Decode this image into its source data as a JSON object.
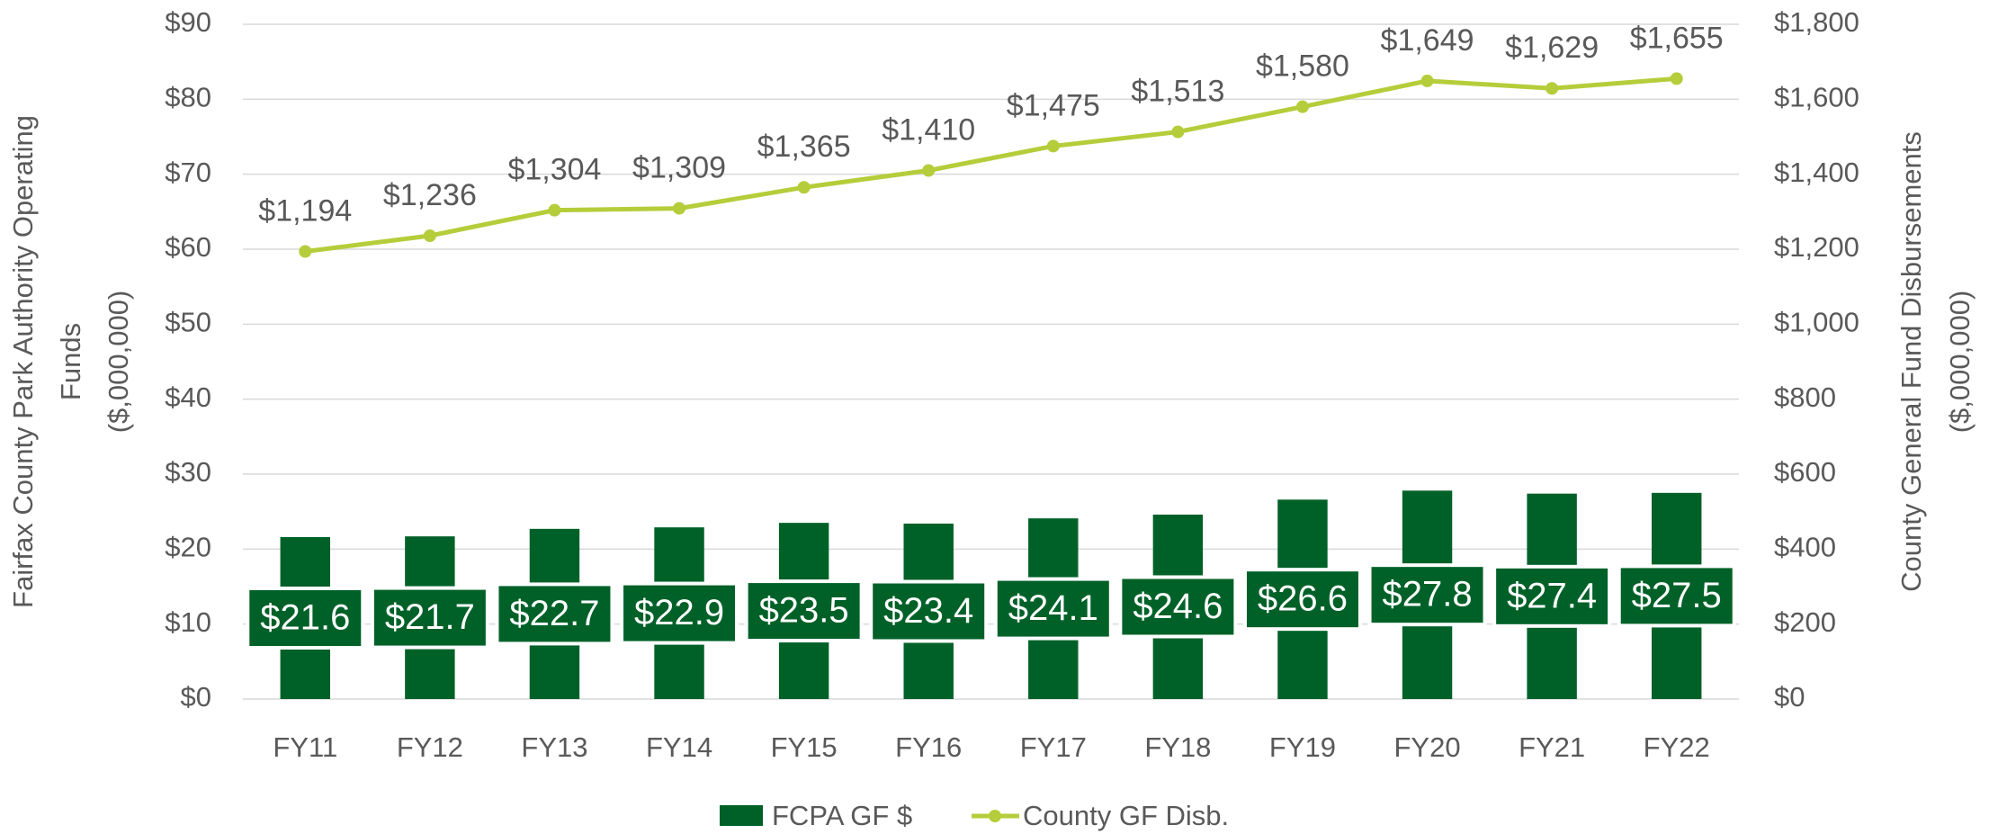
{
  "chart_data": {
    "type": "bar_line",
    "categories": [
      "FY11",
      "FY12",
      "FY13",
      "FY14",
      "FY15",
      "FY16",
      "FY17",
      "FY18",
      "FY19",
      "FY20",
      "FY21",
      "FY22"
    ],
    "series": [
      {
        "name": "FCPA GF $",
        "type": "bar",
        "color": "#006128",
        "axis": "y",
        "values": [
          21.6,
          21.7,
          22.7,
          22.9,
          23.5,
          23.4,
          24.1,
          24.6,
          26.6,
          27.8,
          27.4,
          27.5
        ],
        "value_labels": [
          "$21.6",
          "$21.7",
          "$22.7",
          "$22.9",
          "$23.5",
          "$23.4",
          "$24.1",
          "$24.6",
          "$26.6",
          "$27.8",
          "$27.4",
          "$27.5"
        ]
      },
      {
        "name": "County GF Disb.",
        "type": "line",
        "color": "#b5cd3a",
        "axis": "y2",
        "values": [
          1194,
          1236,
          1304,
          1309,
          1365,
          1410,
          1475,
          1513,
          1580,
          1649,
          1629,
          1655
        ],
        "value_labels": [
          "$1,194",
          "$1,236",
          "$1,304",
          "$1,309",
          "$1,365",
          "$1,410",
          "$1,475",
          "$1,513",
          "$1,580",
          "$1,649",
          "$1,629",
          "$1,655"
        ]
      }
    ],
    "ylabel": [
      "Fairfax County Park Authority Operating",
      "Funds",
      "($,000,000)"
    ],
    "y2label": [
      "County General Fund Disbursements",
      "($,000,000)"
    ],
    "ylim": [
      0,
      90
    ],
    "yticks": [
      {
        "value": 0,
        "label": "$0"
      },
      {
        "value": 10,
        "label": "$10"
      },
      {
        "value": 20,
        "label": "$20"
      },
      {
        "value": 30,
        "label": "$30"
      },
      {
        "value": 40,
        "label": "$40"
      },
      {
        "value": 50,
        "label": "$50"
      },
      {
        "value": 60,
        "label": "$60"
      },
      {
        "value": 70,
        "label": "$70"
      },
      {
        "value": 80,
        "label": "$80"
      },
      {
        "value": 90,
        "label": "$90"
      }
    ],
    "y2lim": [
      0,
      1800
    ],
    "y2ticks": [
      {
        "value": 0,
        "label": "$0"
      },
      {
        "value": 200,
        "label": "$200"
      },
      {
        "value": 400,
        "label": "$400"
      },
      {
        "value": 600,
        "label": "$600"
      },
      {
        "value": 800,
        "label": "$800"
      },
      {
        "value": 1000,
        "label": "$1,000"
      },
      {
        "value": 1200,
        "label": "$1,200"
      },
      {
        "value": 1400,
        "label": "$1,400"
      },
      {
        "value": 1600,
        "label": "$1,600"
      },
      {
        "value": 1800,
        "label": "$1,800"
      }
    ],
    "grid": true,
    "legend": "bottom"
  }
}
